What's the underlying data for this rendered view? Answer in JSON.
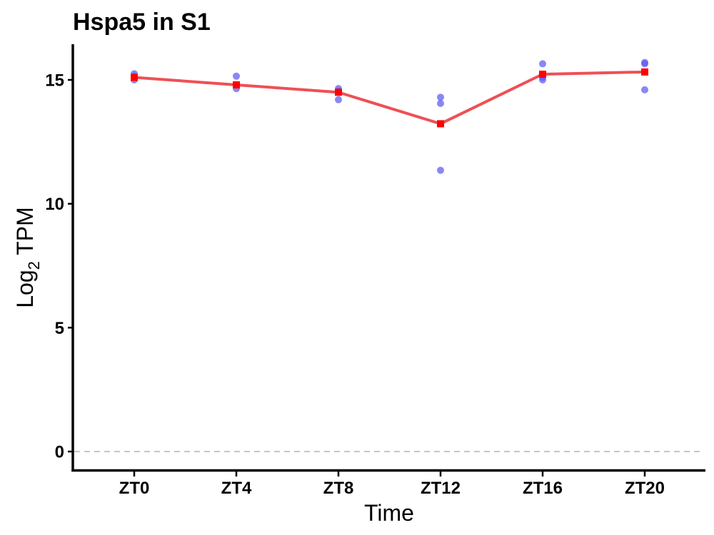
{
  "chart_data": {
    "type": "line",
    "title": "Hspa5 in S1",
    "xlabel": "Time",
    "ylabel": {
      "base": "Log",
      "subscript": "2",
      "suffix": " TPM"
    },
    "categories": [
      "ZT0",
      "ZT4",
      "ZT8",
      "ZT12",
      "ZT16",
      "ZT20"
    ],
    "ylim": [
      -0.75,
      16.4
    ],
    "yticks": [
      "0",
      "5",
      "10",
      "15"
    ],
    "reference_line": {
      "y": 0,
      "style": "dashed",
      "color": "#b3b3b3"
    },
    "series": [
      {
        "kind": "replicate points",
        "color": "#5a5af0",
        "values": [
          [
            15.25,
            15.15,
            15.0
          ],
          [
            15.15,
            14.8,
            14.65
          ],
          [
            14.65,
            14.55,
            14.2
          ],
          [
            14.3,
            14.05,
            11.35
          ],
          [
            15.65,
            15.1,
            15.0
          ],
          [
            15.7,
            15.65,
            14.6
          ]
        ]
      },
      {
        "kind": "mean line",
        "color": "#ee5055",
        "marker_color": "#ff0000",
        "values": [
          15.1,
          14.8,
          14.5,
          13.23,
          15.23,
          15.32
        ]
      }
    ],
    "grid": false,
    "legend": "none"
  }
}
